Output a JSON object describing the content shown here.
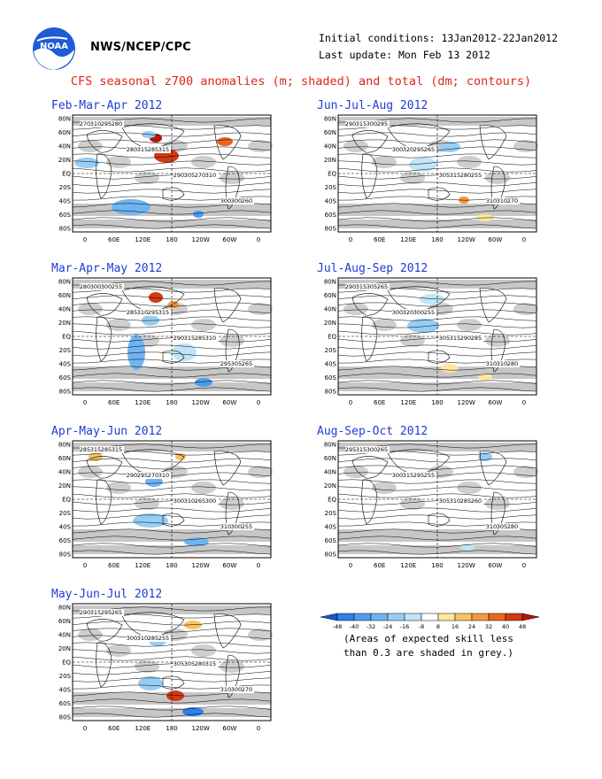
{
  "header": {
    "org": "NWS/NCEP/CPC",
    "initial_conditions": "Initial conditions: 13Jan2012-22Jan2012",
    "last_update": "Last update: Mon Feb 13 2012",
    "title": "CFS seasonal z700 anomalies (m; shaded) and total (dm; contours)",
    "logo_text": "NOAA"
  },
  "axes": {
    "lat_labels": [
      "80N",
      "60N",
      "40N",
      "20N",
      "EQ",
      "20S",
      "40S",
      "60S",
      "80S"
    ],
    "lon_labels": [
      "0",
      "60E",
      "120E",
      "180",
      "120W",
      "60W",
      "0"
    ]
  },
  "colors": {
    "title": "#e0241b",
    "panel_title": "#1f3bd6",
    "skill_shading": "#bdbdbd",
    "contour": "#000000"
  },
  "panels": [
    {
      "title": "Feb-Mar-Apr 2012",
      "labels": [
        "270",
        "280",
        "290",
        "300",
        "310",
        "315",
        "305",
        "300",
        "295",
        "285",
        "270",
        "260",
        "280",
        "315",
        "310"
      ]
    },
    {
      "title": "Jun-Jul-Aug 2012",
      "labels": [
        "290",
        "300",
        "305",
        "310",
        "315",
        "320",
        "315",
        "310",
        "300",
        "295",
        "280",
        "270",
        "285",
        "265",
        "255"
      ]
    },
    {
      "title": "Mar-Apr-May 2012",
      "labels": [
        "280",
        "285",
        "290",
        "295",
        "300",
        "310",
        "315",
        "305",
        "300",
        "295",
        "285",
        "265",
        "255",
        "315",
        "310"
      ]
    },
    {
      "title": "Jul-Aug-Sep 2012",
      "labels": [
        "290",
        "300",
        "305",
        "310",
        "315",
        "320",
        "315",
        "310",
        "305",
        "300",
        "290",
        "280",
        "265",
        "255",
        "285"
      ]
    },
    {
      "title": "Apr-May-Jun 2012",
      "labels": [
        "285",
        "290",
        "300",
        "310",
        "315",
        "295",
        "310",
        "300",
        "285",
        "270",
        "265",
        "255",
        "315",
        "310",
        "300"
      ]
    },
    {
      "title": "Aug-Sep-Oct 2012",
      "labels": [
        "295",
        "300",
        "305",
        "310",
        "315",
        "315",
        "310",
        "305",
        "300",
        "295",
        "285",
        "280",
        "265",
        "255",
        "260"
      ]
    },
    {
      "title": "May-Jun-Jul 2012",
      "labels": [
        "290",
        "300",
        "305",
        "310",
        "315",
        "310",
        "305",
        "300",
        "295",
        "285",
        "280",
        "270",
        "265",
        "255",
        "315"
      ]
    }
  ],
  "colorbar": {
    "ticks": [
      "-48",
      "-40",
      "-32",
      "-24",
      "-16",
      "-8",
      "8",
      "16",
      "24",
      "32",
      "40",
      "48"
    ],
    "colors": [
      "#1155d8",
      "#2f7fe8",
      "#4d9cf0",
      "#6fb4f2",
      "#97cdf5",
      "#c2e4f8",
      "#ffffff",
      "#fde7a0",
      "#f9c262",
      "#f59a3a",
      "#e9671f",
      "#d23a12",
      "#b3170b"
    ],
    "note_line1": "(Areas of expected skill less",
    "note_line2": "than 0.3 are shaded in grey.)"
  }
}
